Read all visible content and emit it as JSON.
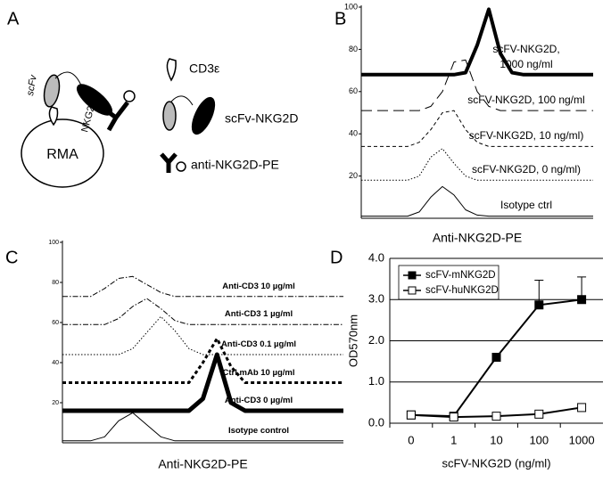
{
  "diagram": {
    "panel": "A",
    "labels": {
      "scfv": "scFv",
      "nkg2d": "NKG2D",
      "rma": "RMA",
      "cd3": "CD3ε",
      "scfv_nkg2d": "scFv-NKG2D",
      "anti_pe": "anti-NKG2D-PE"
    }
  },
  "chart_data": [
    {
      "panel": "B",
      "type": "density",
      "x_label": "Anti-NKG2D-PE",
      "x": [
        0,
        5,
        10,
        15,
        20,
        25,
        30,
        35,
        40,
        45,
        50,
        55,
        60,
        65,
        70,
        75,
        80,
        85,
        90,
        95,
        100
      ],
      "xlim": [
        0,
        100
      ],
      "ylim": [
        0,
        100
      ],
      "yticks": [
        20,
        40,
        60,
        80,
        100
      ],
      "series": [
        {
          "name": "Isotype ctrl",
          "color": "#000000",
          "line_style": "solid",
          "line_width": 1,
          "values": [
            1,
            1,
            1,
            1,
            1,
            3,
            10,
            15,
            11,
            4,
            1.5,
            1,
            1,
            1,
            1,
            1,
            1,
            1,
            1,
            1,
            1
          ]
        },
        {
          "name": "scFV-NKG2D, 0 ng/ml)",
          "color": "#000000",
          "line_style": "dotted",
          "line_width": 1,
          "values": [
            18,
            18,
            18,
            18,
            18,
            20,
            29,
            33,
            26,
            20,
            18,
            18,
            18,
            18,
            18,
            18,
            18,
            18,
            18,
            18,
            18
          ]
        },
        {
          "name": "scFV-NKG2D, 10 ng/ml)",
          "color": "#000000",
          "line_style": "dashed",
          "line_width": 1,
          "values": [
            34,
            34,
            34,
            34,
            34,
            36,
            42,
            50,
            51,
            42,
            36,
            34,
            34,
            34,
            34,
            34,
            34,
            34,
            34,
            34,
            34
          ]
        },
        {
          "name": "scFV-NKG2D, 100 ng/ml",
          "color": "#000000",
          "line_style": "long-dash",
          "line_width": 1,
          "values": [
            51,
            51,
            51,
            51,
            51,
            51,
            53,
            60,
            74,
            75,
            60,
            53,
            51,
            51,
            51,
            51,
            51,
            51,
            51,
            51,
            51
          ]
        },
        {
          "name": "scFV-NKG2D, 1000 ng/ml",
          "color": "#000000",
          "line_style": "solid",
          "line_width": 4,
          "values": [
            68,
            68,
            68,
            68,
            68,
            68,
            68,
            68,
            68,
            69,
            82,
            99,
            78,
            69,
            68,
            68,
            68,
            68,
            68,
            68,
            68
          ]
        }
      ]
    },
    {
      "panel": "C",
      "type": "density",
      "x_label": "Anti-NKG2D-PE",
      "x": [
        0,
        5,
        10,
        15,
        20,
        25,
        30,
        35,
        40,
        45,
        50,
        55,
        60,
        65,
        70,
        75,
        80,
        85,
        90,
        95,
        100
      ],
      "xlim": [
        0,
        100
      ],
      "ylim": [
        0,
        100
      ],
      "yticks": [
        20,
        40,
        60,
        80,
        100
      ],
      "series": [
        {
          "name": "Isotype control",
          "color": "#000000",
          "line_style": "solid",
          "line_width": 1,
          "values": [
            1,
            1,
            1,
            3,
            11,
            15,
            9,
            3,
            1,
            1,
            1,
            1,
            1,
            1,
            1,
            1,
            1,
            1,
            1,
            1,
            1
          ]
        },
        {
          "name": "Anti-CD3 0 µg/ml",
          "color": "#000000",
          "line_style": "solid",
          "line_width": 5,
          "values": [
            16,
            16,
            16,
            16,
            16,
            16,
            16,
            16,
            16,
            16,
            22,
            44,
            20,
            16,
            16,
            16,
            16,
            16,
            16,
            16,
            16
          ]
        },
        {
          "name": "Ctrl mAb 10 µg/ml",
          "color": "#000000",
          "line_style": "dashed",
          "line_width": 3,
          "values": [
            30,
            30,
            30,
            30,
            30,
            30,
            30,
            30,
            30,
            30,
            40,
            52,
            38,
            30,
            30,
            30,
            30,
            30,
            30,
            30,
            30
          ]
        },
        {
          "name": "Anti-CD3 0.1 µg/ml",
          "color": "#000000",
          "line_style": "dotted",
          "line_width": 1,
          "values": [
            44,
            44,
            44,
            44,
            44,
            47,
            55,
            63,
            56,
            47,
            44,
            44,
            44,
            44,
            44,
            44,
            44,
            44,
            44,
            44,
            44
          ]
        },
        {
          "name": "Anti-CD3 1 µg/ml",
          "color": "#000000",
          "line_style": "dash-dot",
          "line_width": 1,
          "values": [
            59,
            59,
            59,
            59,
            62,
            68,
            72,
            67,
            61,
            59,
            59,
            59,
            59,
            59,
            59,
            59,
            59,
            59,
            59,
            59,
            59
          ]
        },
        {
          "name": "Anti-CD3 10 µg/ml",
          "color": "#000000",
          "line_style": "dash-dot",
          "line_width": 1,
          "values": [
            73,
            73,
            73,
            77,
            82,
            83,
            79,
            75,
            73,
            73,
            73,
            73,
            73,
            73,
            73,
            73,
            73,
            73,
            73,
            73,
            73
          ]
        }
      ]
    },
    {
      "panel": "D",
      "type": "line",
      "x_label": "scFV-NKG2D (ng/ml)",
      "y_label": "OD570nm",
      "categories": [
        "0",
        "1",
        "10",
        "100",
        "1000"
      ],
      "ylim": [
        0,
        4
      ],
      "yticks": [
        {
          "value": 0,
          "label": "0.0"
        },
        {
          "value": 1,
          "label": "1.0"
        },
        {
          "value": 2,
          "label": "2.0"
        },
        {
          "value": 3,
          "label": "3.0"
        },
        {
          "value": 4,
          "label": "4.0"
        }
      ],
      "grid": true,
      "legend": "top-left",
      "series": [
        {
          "name": "scFV-mNKG2D",
          "color": "#000000",
          "marker_fill": "#000000",
          "values": [
            0.2,
            0.17,
            1.6,
            2.87,
            3.0
          ],
          "errors": [
            null,
            null,
            null,
            0.6,
            0.55
          ]
        },
        {
          "name": "scFV-huNKG2D",
          "color": "#000000",
          "marker_fill": "#ffffff",
          "values": [
            0.2,
            0.15,
            0.17,
            0.22,
            0.38
          ]
        }
      ]
    }
  ]
}
